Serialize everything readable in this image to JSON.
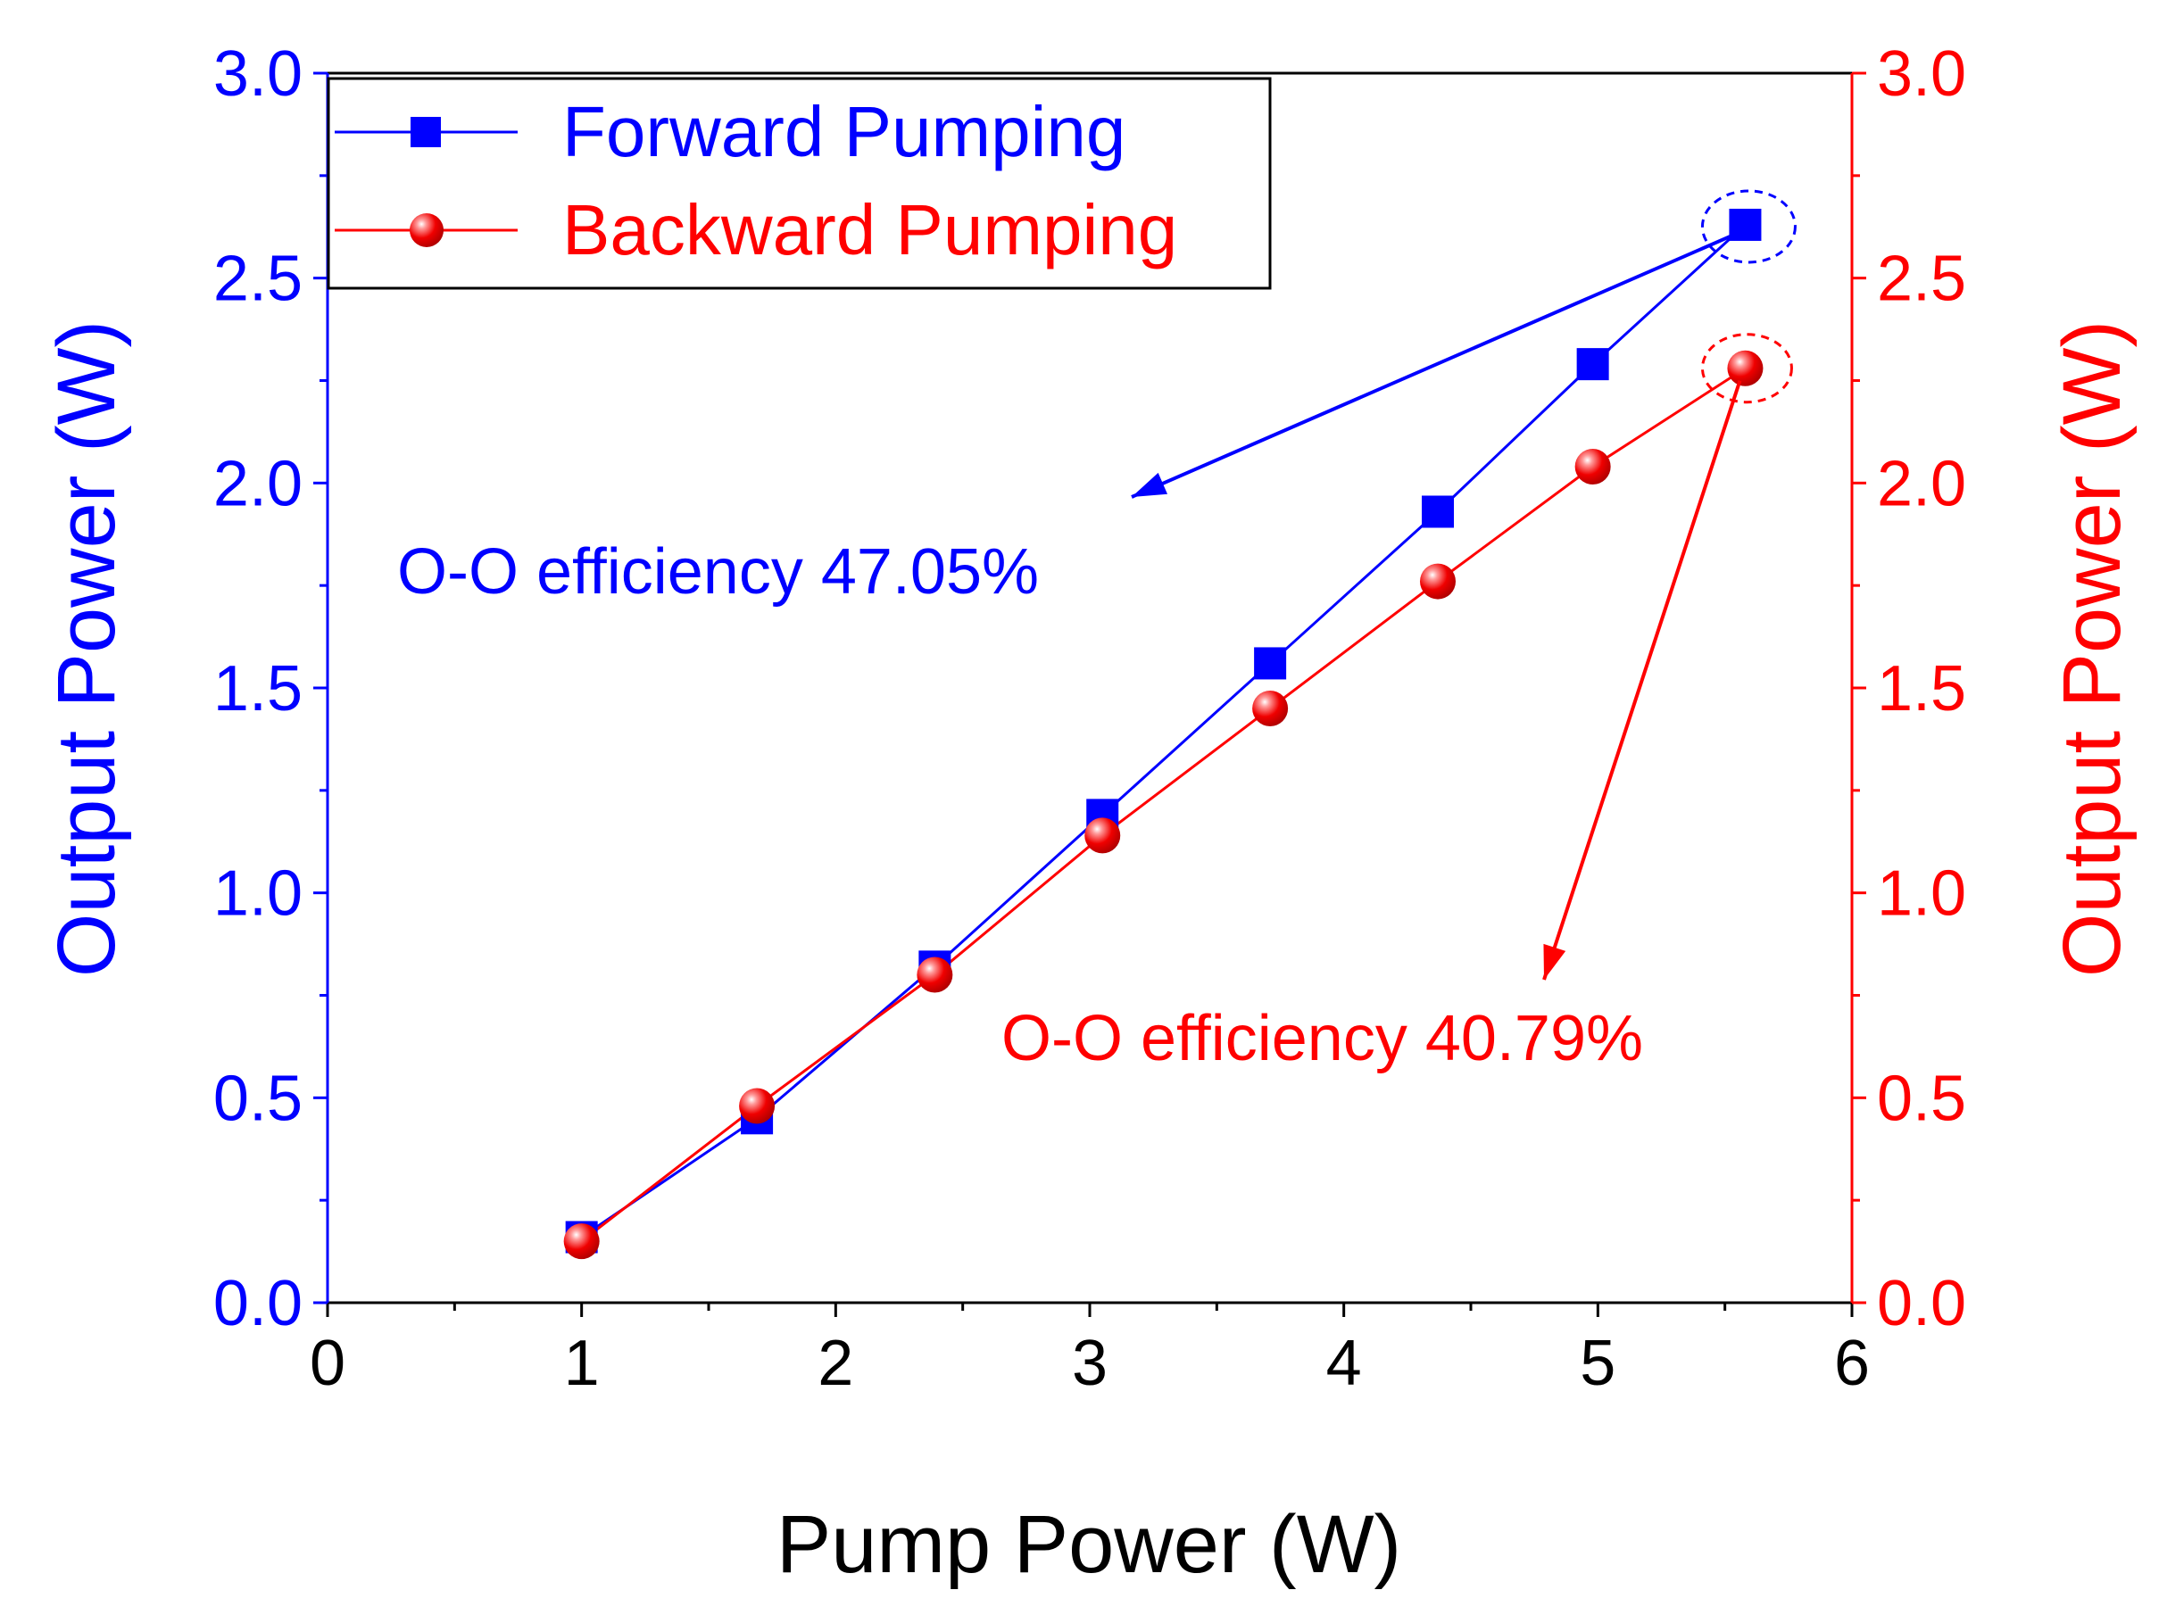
{
  "chart_data": {
    "type": "line",
    "xlabel": "Pump Power (W)",
    "ylabel_left": "Output Power (W)",
    "ylabel_right": "Output Power (W)",
    "xlim": [
      0,
      6
    ],
    "ylim_left": [
      0,
      3
    ],
    "ylim_right": [
      0,
      3
    ],
    "x_ticks": [
      "0",
      "1",
      "2",
      "3",
      "4",
      "5",
      "6"
    ],
    "y_ticks_left": [
      "0.0",
      "0.5",
      "1.0",
      "1.5",
      "2.0",
      "2.5",
      "3.0"
    ],
    "y_ticks_right": [
      "0.0",
      "0.5",
      "1.0",
      "1.5",
      "2.0",
      "2.5",
      "3.0"
    ],
    "grid": false,
    "legend_position": "top-left",
    "series": [
      {
        "name": "Forward Pumping",
        "color": "#0000ff",
        "marker": "square",
        "axis": "left",
        "x": [
          1.0,
          1.69,
          2.39,
          3.05,
          3.71,
          4.37,
          4.98,
          5.58
        ],
        "values": [
          0.16,
          0.45,
          0.82,
          1.19,
          1.56,
          1.93,
          2.29,
          2.63
        ]
      },
      {
        "name": "Backward Pumping",
        "color": "#ff0000",
        "marker": "sphere",
        "axis": "right",
        "x": [
          1.0,
          1.69,
          2.39,
          3.05,
          3.71,
          4.37,
          4.98,
          5.58
        ],
        "values": [
          0.15,
          0.48,
          0.8,
          1.14,
          1.45,
          1.76,
          2.04,
          2.28
        ]
      }
    ],
    "annotations": [
      {
        "text": "O-O efficiency 47.05%",
        "color": "#0000ff"
      },
      {
        "text": "O-O efficiency 40.79%",
        "color": "#ff0000"
      }
    ],
    "left_axis_color": "#0000ff",
    "right_axis_color": "#ff0000",
    "x_axis_color": "#000000"
  }
}
